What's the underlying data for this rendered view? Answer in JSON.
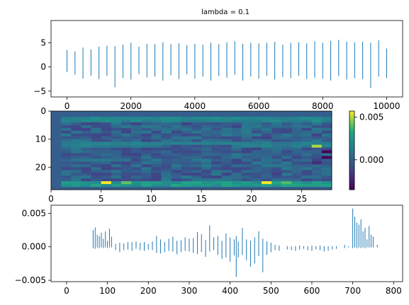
{
  "figure": {
    "background": "#ffffff",
    "bar_color": "#1f77b4"
  },
  "chart_data": [
    {
      "type": "bar",
      "title": "lambda = 0.1",
      "xlim": [
        -500,
        10500
      ],
      "ylim": [
        -6.2,
        9.6
      ],
      "xticks": [
        0,
        2000,
        4000,
        6000,
        8000,
        10000
      ],
      "yticks": [
        -5,
        0,
        5
      ],
      "xtick_labels": [
        "0",
        "2000",
        "4000",
        "6000",
        "8000",
        "10000"
      ],
      "ytick_labels": [
        "−5",
        "0",
        "5"
      ],
      "x": [
        0,
        250,
        500,
        750,
        1000,
        1250,
        1500,
        1750,
        2000,
        2250,
        2500,
        2750,
        3000,
        3250,
        3500,
        3750,
        4000,
        4250,
        4500,
        4750,
        5000,
        5250,
        5500,
        5750,
        6000,
        6250,
        6500,
        6750,
        7000,
        7250,
        7500,
        7750,
        8000,
        8250,
        8500,
        8750,
        9000,
        9250,
        9500,
        9750,
        10000
      ],
      "values": [
        3.5,
        3.2,
        4.0,
        3.6,
        4.2,
        4.4,
        4.3,
        4.6,
        5.0,
        4.2,
        4.8,
        4.7,
        5.1,
        4.7,
        4.9,
        4.5,
        4.8,
        4.6,
        5.0,
        4.7,
        5.1,
        5.3,
        4.8,
        5.0,
        4.9,
        5.0,
        5.2,
        4.6,
        5.0,
        5.1,
        4.9,
        5.3,
        5.0,
        5.4,
        5.6,
        5.2,
        5.1,
        5.2,
        5.0,
        5.5,
        3.8
      ],
      "negative_values": [
        -1.0,
        -1.6,
        -2.4,
        -1.8,
        -2.5,
        -1.8,
        -4.2,
        -2.3,
        -2.6,
        -1.5,
        -2.2,
        -2.0,
        -2.8,
        -1.7,
        -2.5,
        -1.5,
        -2.4,
        -2.0,
        -2.8,
        -1.9,
        -2.2,
        -1.6,
        -2.8,
        -2.0,
        -2.4,
        -1.8,
        -2.6,
        -2.1,
        -2.3,
        -1.8,
        -2.5,
        -2.2,
        -2.4,
        -2.8,
        -1.9,
        -2.6,
        -2.3,
        -2.5,
        -4.3,
        -2.0,
        -2.3
      ]
    },
    {
      "type": "heatmap",
      "xlim": [
        0,
        28
      ],
      "ylim": [
        28,
        0
      ],
      "xticks": [
        0,
        5,
        10,
        15,
        20,
        25
      ],
      "yticks": [
        0,
        10,
        20
      ],
      "xtick_labels": [
        "0",
        "5",
        "10",
        "15",
        "20",
        "25"
      ],
      "ytick_labels": [
        "0",
        "10",
        "20"
      ],
      "colorbar": {
        "range": [
          -0.0035,
          0.0057
        ],
        "ticks": [
          0.0,
          0.005
        ],
        "tick_labels": [
          "0.000",
          "0.005"
        ],
        "colormap": "viridis"
      }
    },
    {
      "type": "bar",
      "xlim": [
        -38,
        822
      ],
      "ylim": [
        -0.0052,
        0.0062
      ],
      "xticks": [
        0,
        100,
        200,
        300,
        400,
        500,
        600,
        700,
        800
      ],
      "yticks": [
        -0.005,
        0.0,
        0.005
      ],
      "xtick_labels": [
        "0",
        "100",
        "200",
        "300",
        "400",
        "500",
        "600",
        "700",
        "800"
      ],
      "ytick_labels": [
        "−0.005",
        "0.000",
        "0.005"
      ],
      "x": [
        65,
        70,
        75,
        80,
        85,
        90,
        95,
        100,
        105,
        110,
        120,
        130,
        140,
        150,
        160,
        170,
        180,
        190,
        200,
        210,
        220,
        230,
        240,
        250,
        260,
        270,
        280,
        290,
        300,
        310,
        320,
        330,
        340,
        350,
        360,
        370,
        380,
        390,
        400,
        410,
        415,
        420,
        430,
        440,
        450,
        460,
        470,
        480,
        490,
        500,
        510,
        520,
        540,
        550,
        560,
        570,
        580,
        590,
        600,
        610,
        620,
        630,
        640,
        650,
        660,
        680,
        690,
        700,
        705,
        710,
        715,
        720,
        725,
        730,
        735,
        740,
        745,
        750,
        760
      ],
      "values": [
        0.0025,
        0.0029,
        0.0018,
        0.0016,
        0.0021,
        0.0012,
        0.0023,
        0.0009,
        0.0027,
        0.0015,
        0.0004,
        0.0006,
        0.0005,
        0.0007,
        0.0007,
        0.0008,
        0.0006,
        0.0007,
        0.0004,
        0.0008,
        0.0016,
        0.0011,
        0.0007,
        0.0012,
        0.0015,
        0.0009,
        0.001,
        0.0014,
        0.0012,
        0.0013,
        0.0022,
        0.0019,
        0.001,
        0.0032,
        0.0014,
        0.0016,
        0.0009,
        0.002,
        0.0014,
        0.0011,
        0.0016,
        0.0008,
        0.0028,
        0.0011,
        0.0009,
        0.0014,
        0.0023,
        0.0012,
        0.0008,
        0.0006,
        0.0003,
        0.0002,
        0.0001,
        0.0001,
        0.0001,
        0.0002,
        0.0001,
        0.0001,
        0.0002,
        0.0001,
        0.0002,
        0.0001,
        0.0001,
        0.0001,
        0.0001,
        0.0003,
        0.0001,
        0.0057,
        0.0045,
        0.0036,
        0.0033,
        0.0041,
        0.0023,
        0.0028,
        0.0011,
        0.0031,
        0.0018,
        0.0015,
        0.0003
      ],
      "negative_values": [
        -0.0002,
        -0.0003,
        -0.0001,
        -0.0002,
        -0.0001,
        -0.0002,
        -0.0001,
        -0.0002,
        -0.0001,
        -0.0001,
        -0.0005,
        -0.0008,
        -0.0005,
        -0.0004,
        -0.0006,
        -0.0003,
        -0.0005,
        -0.0006,
        -0.0004,
        -0.0005,
        -0.0009,
        -0.001,
        -0.0008,
        -0.0006,
        -0.0007,
        -0.0011,
        -0.0008,
        -0.0006,
        -0.0007,
        -0.0009,
        -0.0011,
        -0.0008,
        -0.0015,
        -0.0007,
        -0.0005,
        -0.0012,
        -0.0018,
        -0.0016,
        -0.0022,
        -0.0013,
        -0.0045,
        -0.0016,
        -0.0012,
        -0.002,
        -0.003,
        -0.0025,
        -0.0014,
        -0.0038,
        -0.0012,
        -0.0008,
        -0.0005,
        -0.0006,
        -0.0004,
        -0.0005,
        -0.0006,
        -0.0004,
        -0.0003,
        -0.0005,
        -0.0006,
        -0.0004,
        -0.0005,
        -0.0007,
        -0.0006,
        -0.0004,
        -0.0003,
        -0.0002,
        -0.0001,
        -0.0002,
        -0.0001,
        -0.0002,
        -0.0001,
        -0.0002,
        -0.0001,
        -0.0002,
        -0.0001,
        -0.0001,
        -0.0001,
        -0.0001,
        -0.0001
      ]
    }
  ]
}
